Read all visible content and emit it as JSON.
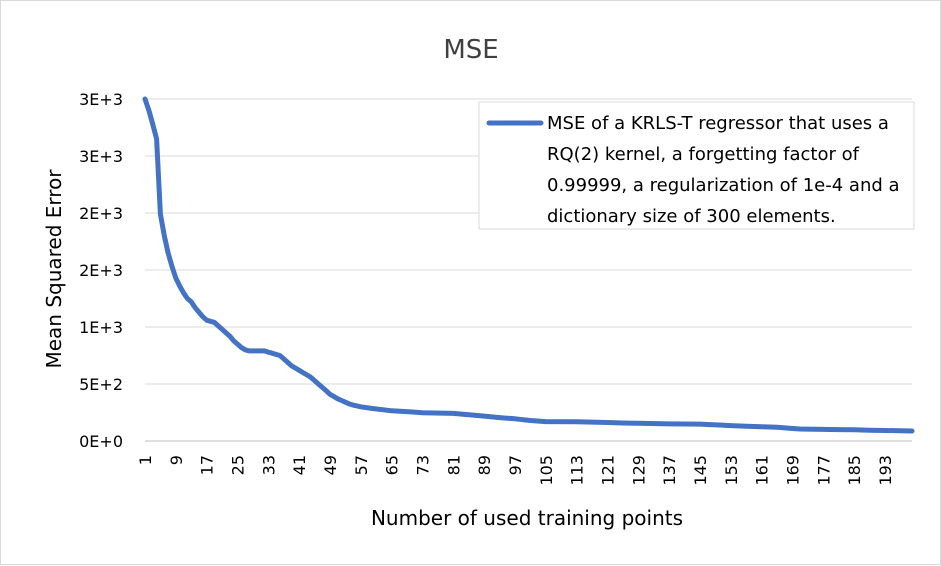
{
  "chart_data": {
    "type": "line",
    "title": "MSE",
    "xlabel": "Number of used training points",
    "ylabel": "Mean Squared Error",
    "x_tick_labels": [
      "1",
      "9",
      "17",
      "25",
      "33",
      "41",
      "49",
      "57",
      "65",
      "73",
      "81",
      "89",
      "97",
      "105",
      "113",
      "121",
      "129",
      "137",
      "145",
      "153",
      "161",
      "169",
      "177",
      "185",
      "193"
    ],
    "y_tick_labels": [
      "0E+0",
      "5E+2",
      "1E+3",
      "2E+3",
      "2E+3",
      "3E+3",
      "3E+3"
    ],
    "xlim": [
      1,
      200
    ],
    "ylim": [
      0,
      3000
    ],
    "grid": true,
    "legend_position": "top-right",
    "series": [
      {
        "name": "MSE of a KRLS-T regressor that uses a RQ(2) kernel, a forgetting factor of 0.99999, a regularization of 1e-4 and a dictionary size of 300 elements.",
        "color": "#4472c4",
        "points": [
          [
            1,
            3000
          ],
          [
            2,
            2900
          ],
          [
            3,
            2780
          ],
          [
            4,
            2650
          ],
          [
            5,
            1990
          ],
          [
            6,
            1800
          ],
          [
            7,
            1650
          ],
          [
            8,
            1530
          ],
          [
            9,
            1430
          ],
          [
            10,
            1360
          ],
          [
            11,
            1300
          ],
          [
            12,
            1250
          ],
          [
            13,
            1220
          ],
          [
            14,
            1170
          ],
          [
            15,
            1130
          ],
          [
            16,
            1090
          ],
          [
            17,
            1060
          ],
          [
            18,
            1050
          ],
          [
            19,
            1040
          ],
          [
            20,
            1010
          ],
          [
            21,
            980
          ],
          [
            22,
            950
          ],
          [
            23,
            920
          ],
          [
            24,
            880
          ],
          [
            25,
            850
          ],
          [
            26,
            820
          ],
          [
            27,
            800
          ],
          [
            28,
            790
          ],
          [
            29,
            790
          ],
          [
            30,
            790
          ],
          [
            31,
            790
          ],
          [
            32,
            790
          ],
          [
            33,
            780
          ],
          [
            34,
            770
          ],
          [
            35,
            760
          ],
          [
            36,
            750
          ],
          [
            37,
            720
          ],
          [
            38,
            690
          ],
          [
            39,
            660
          ],
          [
            40,
            640
          ],
          [
            41,
            620
          ],
          [
            42,
            600
          ],
          [
            43,
            580
          ],
          [
            44,
            560
          ],
          [
            45,
            530
          ],
          [
            46,
            500
          ],
          [
            47,
            470
          ],
          [
            48,
            440
          ],
          [
            49,
            410
          ],
          [
            50,
            390
          ],
          [
            51,
            370
          ],
          [
            52,
            355
          ],
          [
            53,
            340
          ],
          [
            54,
            325
          ],
          [
            55,
            315
          ],
          [
            57,
            300
          ],
          [
            60,
            285
          ],
          [
            65,
            265
          ],
          [
            70,
            255
          ],
          [
            73,
            248
          ],
          [
            81,
            242
          ],
          [
            85,
            230
          ],
          [
            89,
            218
          ],
          [
            93,
            205
          ],
          [
            97,
            195
          ],
          [
            101,
            180
          ],
          [
            105,
            170
          ],
          [
            113,
            168
          ],
          [
            121,
            162
          ],
          [
            125,
            158
          ],
          [
            129,
            155
          ],
          [
            137,
            150
          ],
          [
            145,
            148
          ],
          [
            147,
            145
          ],
          [
            150,
            140
          ],
          [
            153,
            135
          ],
          [
            157,
            130
          ],
          [
            161,
            125
          ],
          [
            165,
            120
          ],
          [
            169,
            110
          ],
          [
            171,
            105
          ],
          [
            177,
            102
          ],
          [
            181,
            100
          ],
          [
            185,
            98
          ],
          [
            189,
            95
          ],
          [
            193,
            92
          ],
          [
            197,
            90
          ],
          [
            200,
            88
          ]
        ]
      }
    ]
  }
}
